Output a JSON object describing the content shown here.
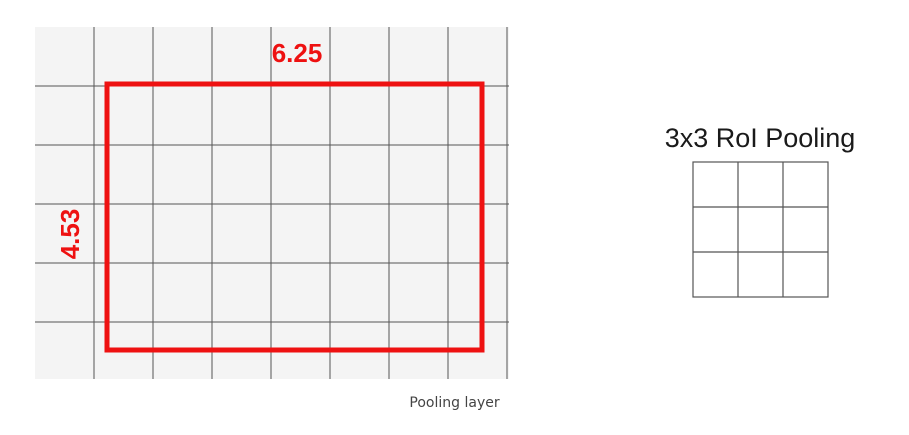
{
  "feature_map": {
    "columns": 8,
    "rows": 6,
    "background": "#f4f4f4",
    "grid_color": "#555555"
  },
  "roi": {
    "width_label": "6.25",
    "height_label": "4.53",
    "color": "#ee1111"
  },
  "pooling": {
    "title": "3x3 RoI Pooling",
    "rows": 3,
    "columns": 3,
    "grid_color": "#555555"
  },
  "caption": "Pooling layer"
}
